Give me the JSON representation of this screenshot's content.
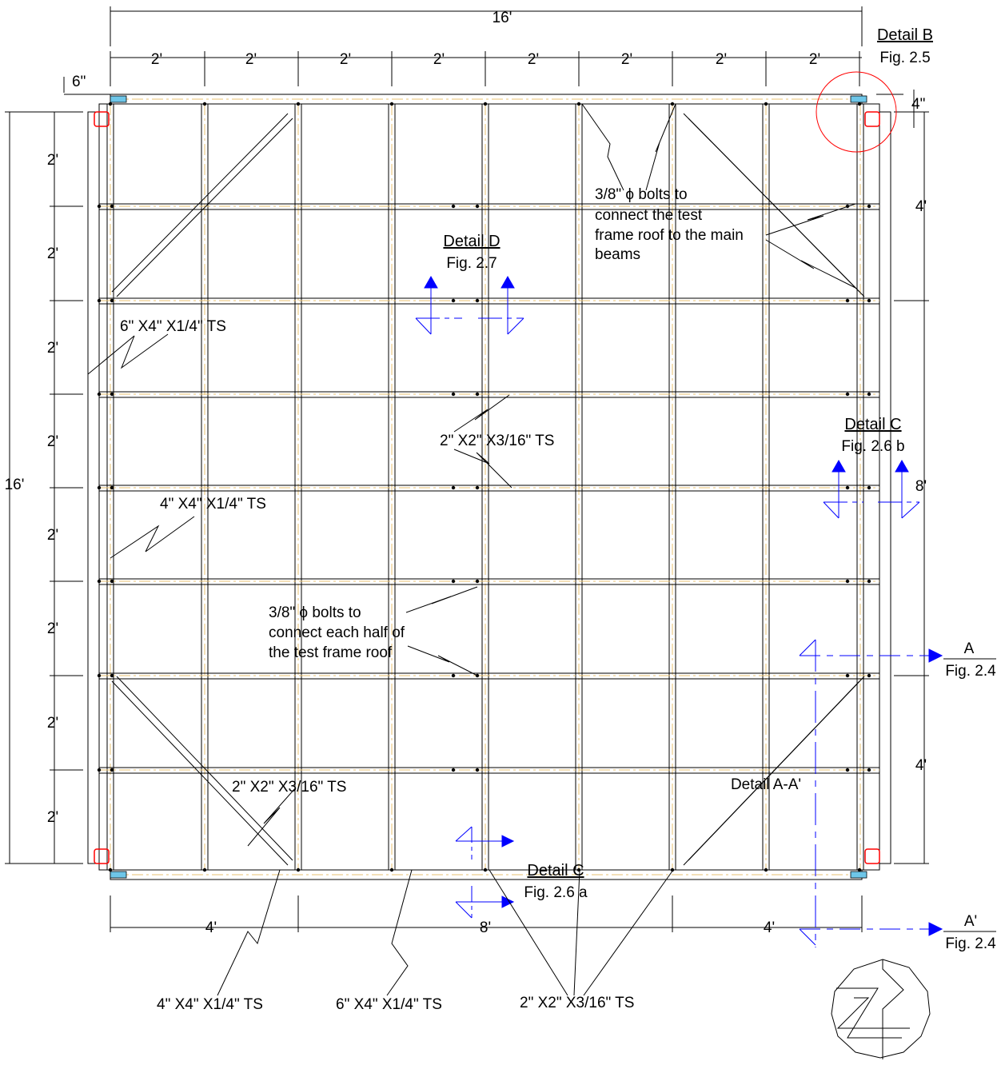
{
  "dimensions": {
    "overall_width": "16'",
    "overall_height": "16'",
    "top_segments": [
      "2'",
      "2'",
      "2'",
      "2'",
      "2'",
      "2'",
      "2'",
      "2'"
    ],
    "left_segments": [
      "2'",
      "2'",
      "2'",
      "2'",
      "2'",
      "2'",
      "2'",
      "2'"
    ],
    "bottom_segments": [
      "4'",
      "8'",
      "4'"
    ],
    "right_segments": [
      "4'",
      "8'",
      "4'"
    ],
    "offset_top": "6\"",
    "offset_right": "4\""
  },
  "details": {
    "b_title": "Detail B",
    "b_fig": "Fig. 2.5",
    "c_right_title": "Detail C",
    "c_right_fig": "Fig. 2.6 b",
    "d_title": "Detail D",
    "d_fig": "Fig. 2.7",
    "c_bottom_title": "Detail C",
    "c_bottom_fig": "Fig. 2.6 a",
    "section_a": "A",
    "section_a_fig": "Fig. 2.4",
    "section_a_prime": "A'",
    "section_a_prime_fig": "Fig. 2.4",
    "section_label": "Detail A-A'"
  },
  "notes": {
    "bolts_main_1": "3/8\" ϕ bolts to",
    "bolts_main_2": "connect the test",
    "bolts_main_3": "frame roof to the main",
    "bolts_main_4": "beams",
    "bolts_half_1": "3/8\" ϕ bolts to",
    "bolts_half_2": "connect each half of",
    "bolts_half_3": "the test frame roof",
    "ts_6x4_left": "6\" X4\" X1/4\" TS",
    "ts_4x4_left": "4\" X4\" X1/4\" TS",
    "ts_2x2_center": "2\" X2\" X3/16\" TS",
    "ts_2x2_lower": "2\" X2\" X3/16\" TS",
    "bottom_4x4": "4\" X4\" X1/4\"  TS",
    "bottom_6x4": "6\" X4\" X1/4\" TS",
    "bottom_2x2": "2\" X2\" X3/16\" TS"
  },
  "colors": {
    "line": "#000000",
    "detail_marker": "#0000ff",
    "callout_circle": "#ff0000",
    "centerline": "#e8c070"
  },
  "icons": [
    "north-arrow-icon",
    "section-arrow-icon",
    "detail-arrow-icon"
  ]
}
